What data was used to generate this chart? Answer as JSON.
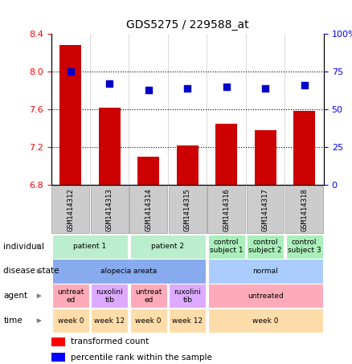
{
  "title": "GDS5275 / 229588_at",
  "samples": [
    "GSM1414312",
    "GSM1414313",
    "GSM1414314",
    "GSM1414315",
    "GSM1414316",
    "GSM1414317",
    "GSM1414318"
  ],
  "bar_values": [
    8.28,
    7.62,
    7.1,
    7.22,
    7.45,
    7.38,
    7.58
  ],
  "dot_values": [
    75,
    67,
    63,
    64,
    65,
    64,
    66
  ],
  "ylim_left": [
    6.8,
    8.4
  ],
  "ylim_right": [
    0,
    100
  ],
  "yticks_left": [
    6.8,
    7.2,
    7.6,
    8.0,
    8.4
  ],
  "yticks_right": [
    0,
    25,
    50,
    75,
    100
  ],
  "bar_color": "#cc0000",
  "dot_color": "#0000cc",
  "individual_groups": [
    {
      "label": "patient 1",
      "cols": [
        0,
        1
      ],
      "color": "#bbeecc"
    },
    {
      "label": "patient 2",
      "cols": [
        2,
        3
      ],
      "color": "#bbeecc"
    },
    {
      "label": "control\nsubject 1",
      "cols": [
        4
      ],
      "color": "#aaeebb"
    },
    {
      "label": "control\nsubject 2",
      "cols": [
        5
      ],
      "color": "#aaeebb"
    },
    {
      "label": "control\nsubject 3",
      "cols": [
        6
      ],
      "color": "#aaeebb"
    }
  ],
  "disease_groups": [
    {
      "label": "alopecia areata",
      "cols": [
        0,
        1,
        2,
        3
      ],
      "color": "#88aaee"
    },
    {
      "label": "normal",
      "cols": [
        4,
        5,
        6
      ],
      "color": "#aaccff"
    }
  ],
  "agent_groups": [
    {
      "label": "untreat\ned",
      "cols": [
        0
      ],
      "color": "#ffaabb"
    },
    {
      "label": "ruxolini\ntib",
      "cols": [
        1
      ],
      "color": "#ddaaff"
    },
    {
      "label": "untreat\ned",
      "cols": [
        2
      ],
      "color": "#ffaabb"
    },
    {
      "label": "ruxolini\ntib",
      "cols": [
        3
      ],
      "color": "#ddaaff"
    },
    {
      "label": "untreated",
      "cols": [
        4,
        5,
        6
      ],
      "color": "#ffaabb"
    }
  ],
  "time_groups": [
    {
      "label": "week 0",
      "cols": [
        0
      ],
      "color": "#ffddaa"
    },
    {
      "label": "week 12",
      "cols": [
        1
      ],
      "color": "#ffddaa"
    },
    {
      "label": "week 0",
      "cols": [
        2
      ],
      "color": "#ffddaa"
    },
    {
      "label": "week 12",
      "cols": [
        3
      ],
      "color": "#ffddaa"
    },
    {
      "label": "week 0",
      "cols": [
        4,
        5,
        6
      ],
      "color": "#ffddaa"
    }
  ],
  "row_labels": [
    "individual",
    "disease state",
    "agent",
    "time"
  ],
  "arrow_color": "#888888",
  "header_bg": "#cccccc",
  "header_border": "#999999"
}
